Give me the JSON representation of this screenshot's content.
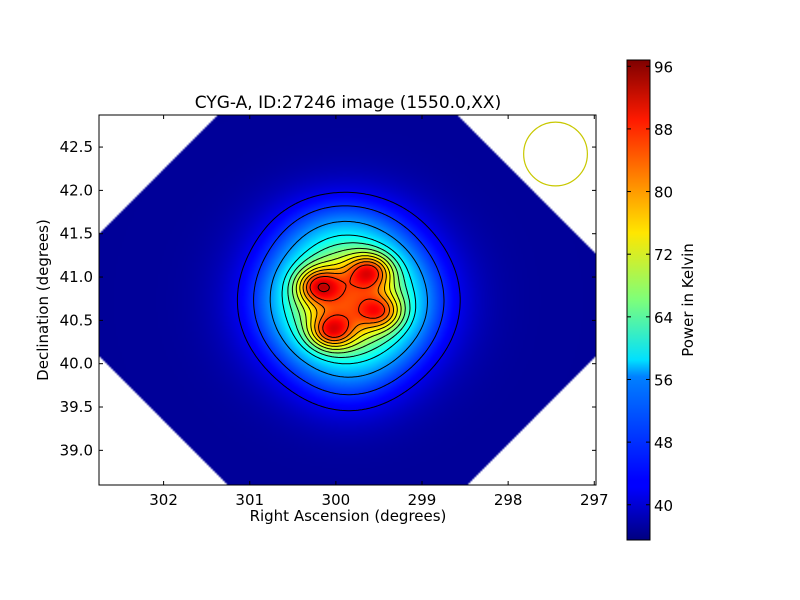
{
  "chart_data": {
    "type": "heatmap",
    "title": "CYG-A, ID:27246 image (1550.0,XX)",
    "xlabel": "Right Ascension (degrees)",
    "ylabel": "Declination (degrees)",
    "xlim": [
      302.75,
      296.98
    ],
    "ylim": [
      38.6,
      42.87
    ],
    "x_ticks": [
      "302",
      "301",
      "300",
      "299",
      "298",
      "297"
    ],
    "x_tick_values": [
      302,
      301,
      300,
      299,
      298,
      297
    ],
    "y_ticks": [
      "39.0",
      "39.5",
      "40.0",
      "40.5",
      "41.0",
      "41.5",
      "42.0",
      "42.5"
    ],
    "y_tick_values": [
      39.0,
      39.5,
      40.0,
      40.5,
      41.0,
      41.5,
      42.0,
      42.5
    ],
    "colorbar": {
      "label": "Power in Kelvin",
      "min": 35.5,
      "max": 96.8,
      "ticks": [
        "40",
        "48",
        "56",
        "64",
        "72",
        "80",
        "88",
        "96"
      ],
      "tick_values": [
        40,
        48,
        56,
        64,
        72,
        80,
        88,
        96
      ],
      "colormap": "jet"
    },
    "source_center": {
      "ra": 299.85,
      "dec": 40.73
    },
    "peak_components": [
      {
        "ra": 300.2,
        "dec": 40.9,
        "value": 94
      },
      {
        "ra": 299.6,
        "dec": 41.07,
        "value": 94
      },
      {
        "ra": 300.05,
        "dec": 40.37,
        "value": 94
      },
      {
        "ra": 299.48,
        "dec": 40.6,
        "value": 90
      }
    ],
    "contour_levels": [
      42,
      46,
      52,
      58,
      62,
      66,
      70,
      74,
      78,
      82,
      86,
      92
    ],
    "beam_circle": {
      "ra": 297.45,
      "dec": 42.42,
      "radius_deg": 0.37,
      "color": "#c8c800"
    },
    "background_level": 37,
    "grid": false
  }
}
